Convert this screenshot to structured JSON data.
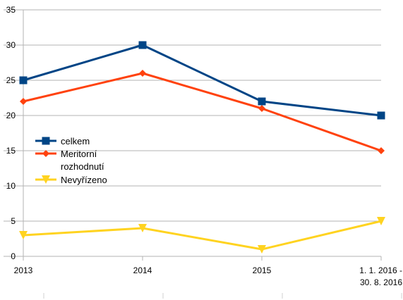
{
  "chart_data": {
    "type": "line",
    "title": "",
    "xlabel": "",
    "ylabel": "",
    "categories": [
      [
        "2013"
      ],
      [
        "2014"
      ],
      [
        "2015"
      ],
      [
        "1. 1. 2016 -",
        "30. 8. 2016"
      ]
    ],
    "ylim": [
      0,
      35
    ],
    "yticks": [
      0,
      5,
      10,
      15,
      20,
      25,
      30,
      35
    ],
    "grid": {
      "horizontal": true,
      "vertical": false
    },
    "legend": {
      "placement": "left-middle"
    },
    "series": [
      {
        "name": [
          "celkem"
        ],
        "color": "#004586",
        "marker": "square",
        "values": [
          25,
          30,
          22,
          20
        ]
      },
      {
        "name": [
          "Meritorní",
          "rozhodnutí"
        ],
        "color": "#ff420e",
        "marker": "diamond",
        "values": [
          22,
          26,
          21,
          15
        ]
      },
      {
        "name": [
          "Nevyřízeno"
        ],
        "color": "#ffd320",
        "marker": "triangle-down",
        "values": [
          3,
          4,
          1,
          5
        ]
      }
    ]
  }
}
